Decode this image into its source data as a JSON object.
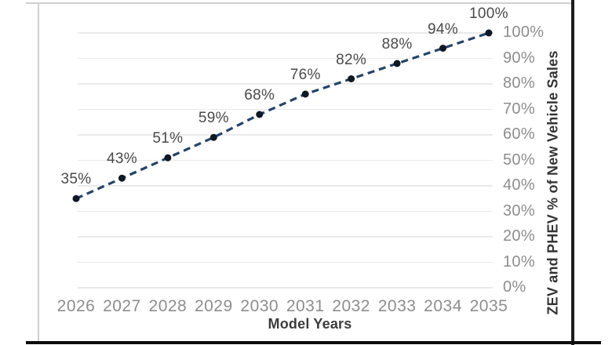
{
  "chart_data": {
    "type": "line",
    "title": "",
    "categories": [
      "2026",
      "2027",
      "2028",
      "2029",
      "2030",
      "2031",
      "2032",
      "2033",
      "2034",
      "2035"
    ],
    "values": [
      35,
      43,
      51,
      59,
      68,
      76,
      82,
      88,
      94,
      100
    ],
    "data_labels": [
      "35%",
      "43%",
      "51%",
      "59%",
      "68%",
      "76%",
      "82%",
      "88%",
      "94%",
      "100%"
    ],
    "xlabel": "Model Years",
    "ylabel": "ZEV and PHEV % of New Vehicle Sales",
    "y_ticks": [
      "0%",
      "10%",
      "20%",
      "30%",
      "40%",
      "50%",
      "60%",
      "70%",
      "80%",
      "90%",
      "100%"
    ],
    "ylim": [
      0,
      100
    ],
    "grid": "horizontal",
    "legend": "none",
    "line_style": "dashed",
    "marker": "circle",
    "colors": {
      "line": "#24436b",
      "marker": "#0f1826",
      "grid": "#eaeaea",
      "tick_label": "#8d8d8d",
      "data_label": "#4a4a4a",
      "axis_title": "#333333",
      "frame_border": "#cfcfcf",
      "dark_edge": "#121212"
    }
  }
}
